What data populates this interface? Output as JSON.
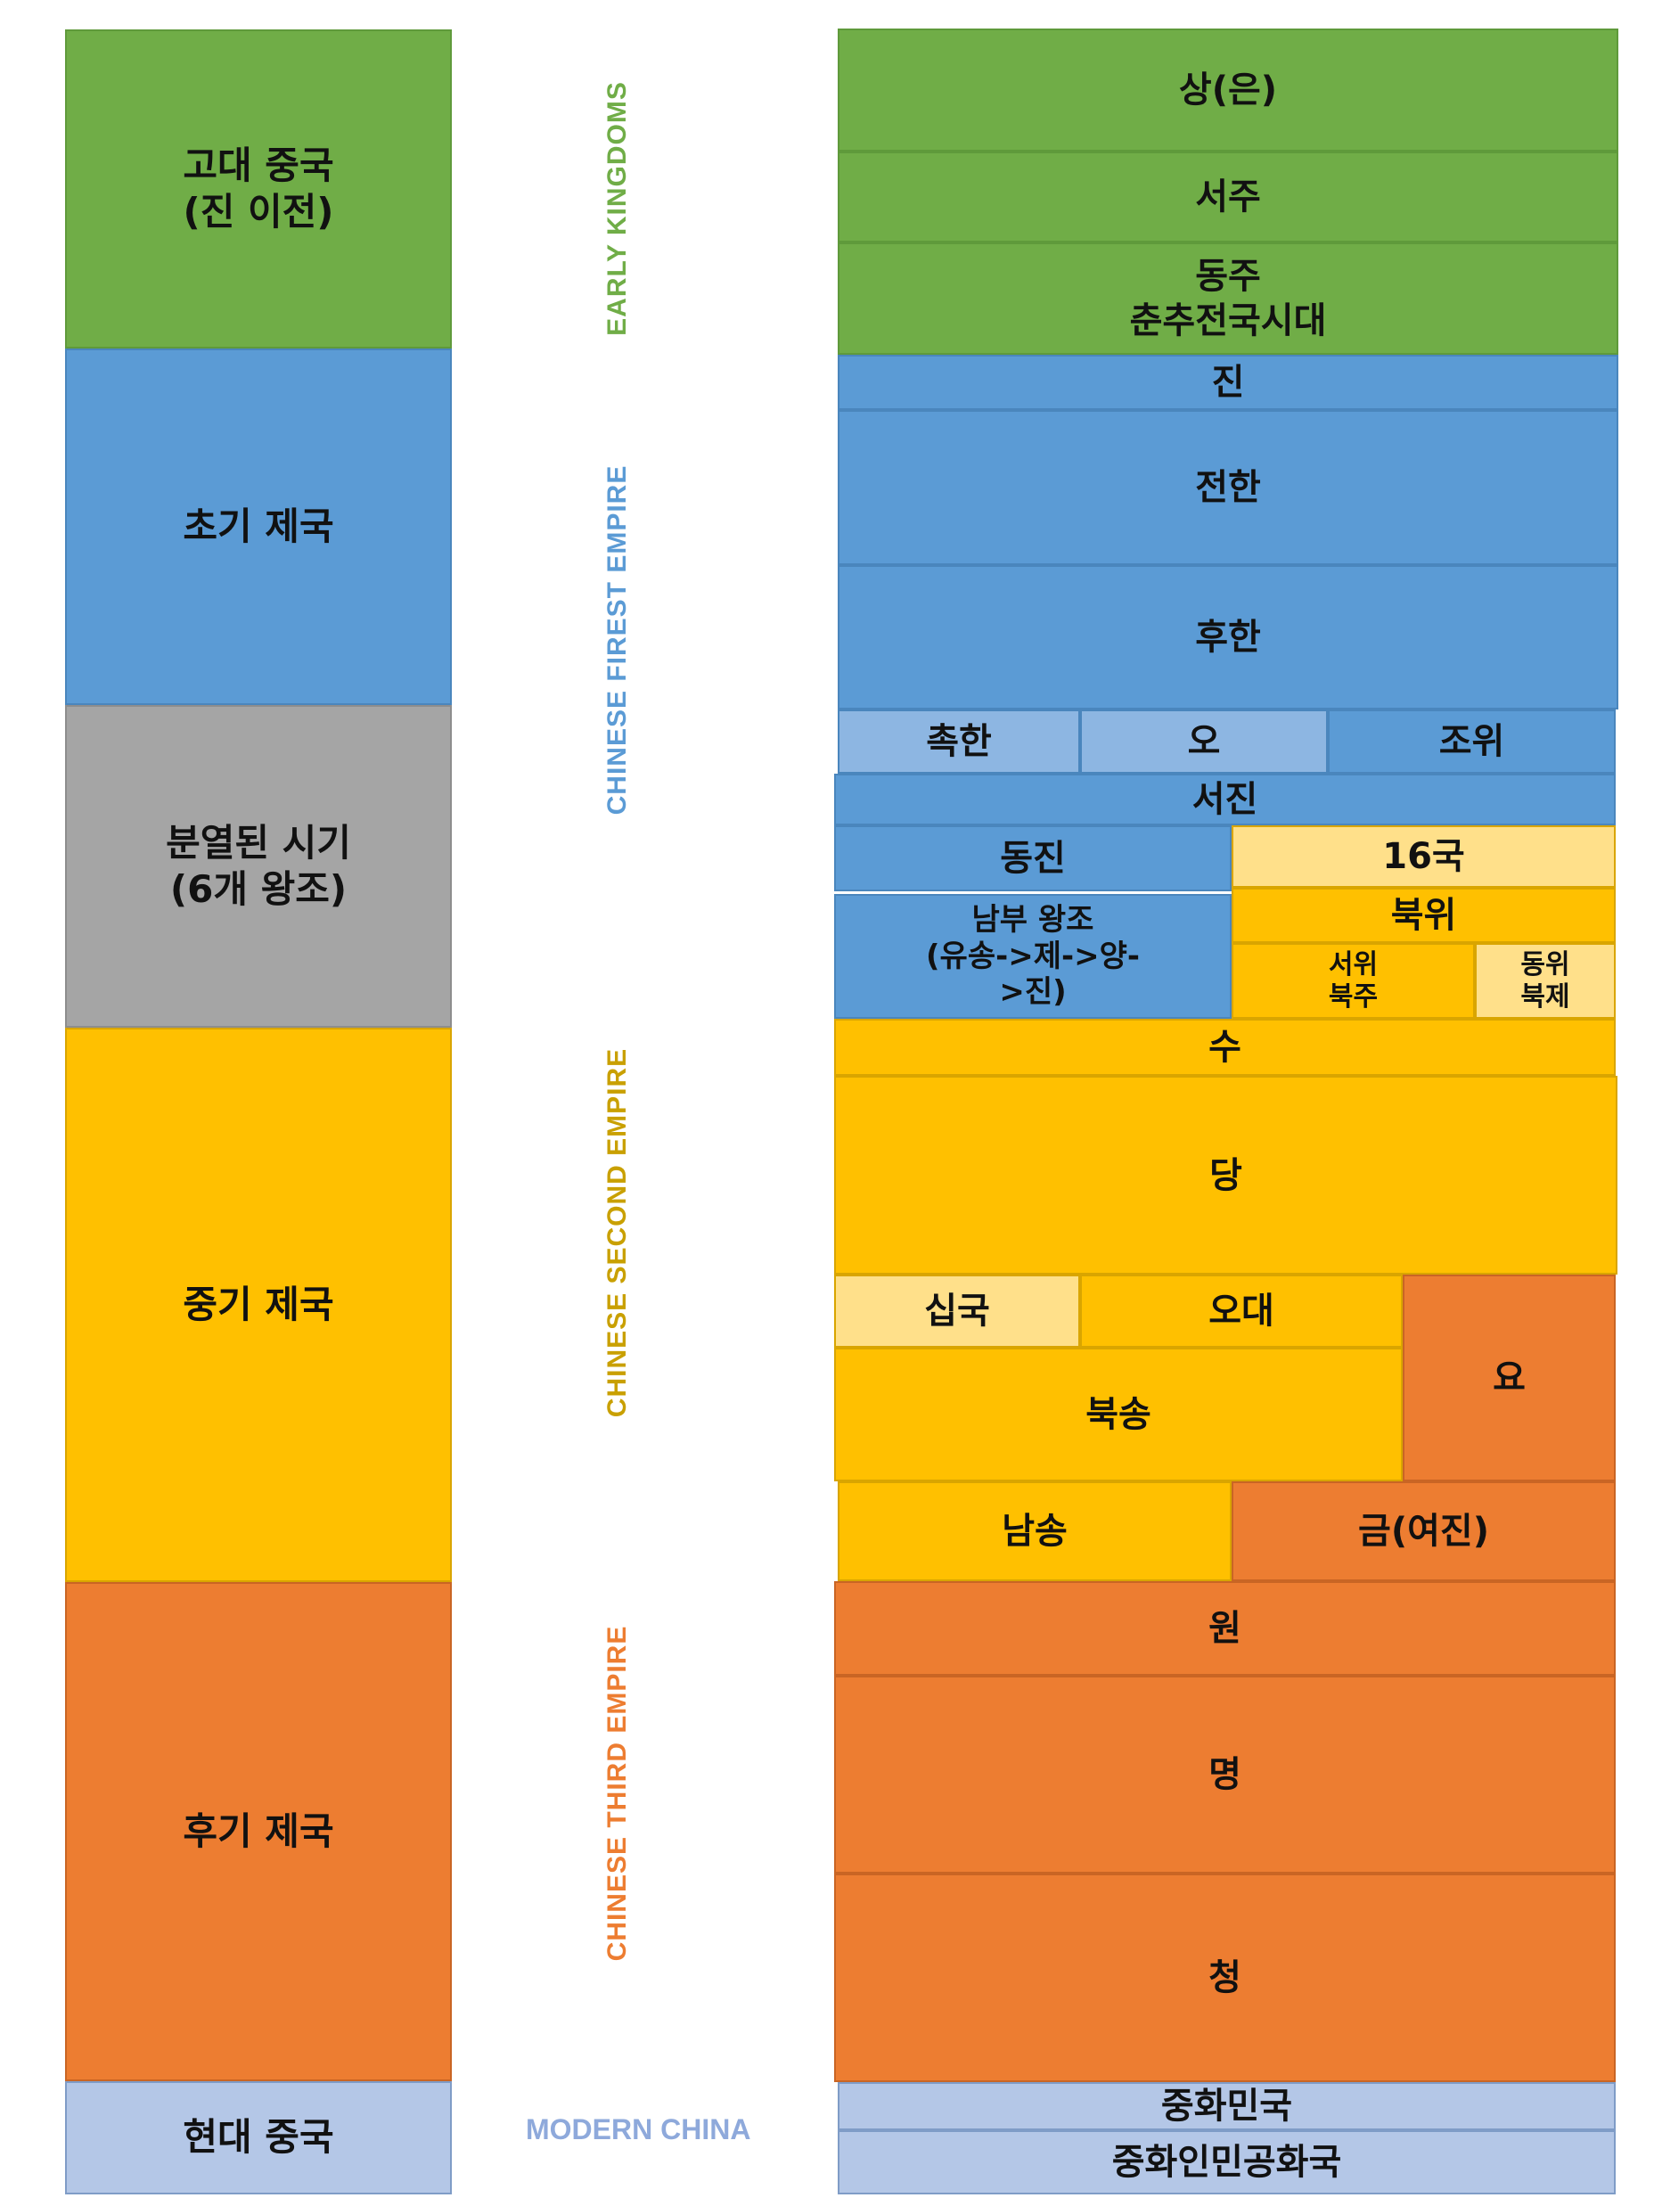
{
  "colors": {
    "early": "#70ad47",
    "first": "#5b9bd5",
    "division": "#a5a5a5",
    "second": "#ffc000",
    "third": "#ed7d31",
    "modern": "#b4c7e7"
  },
  "eras": {
    "ancient": "고대 중국\n(진 이전)",
    "early_empire": "초기 제국",
    "division": "분열된 시기\n(6개 왕조)",
    "middle_empire": "중기 제국",
    "late_empire": "후기 제국",
    "modern": "현대 중국"
  },
  "side_labels": {
    "early_kingdoms": "EARLY KINGDOMS",
    "first_empire": "CHINESE FIREST EMPIRE",
    "second_empire": "CHINESE SECOND EMPIRE",
    "third_empire": "CHINESE THIRD EMPIRE",
    "modern_china": "MODERN CHINA"
  },
  "dynasties": {
    "shang": "상(은)",
    "western_zhou": "서주",
    "eastern_zhou": "동주\n춘추전국시대",
    "qin": "진",
    "western_han": "전한",
    "eastern_han": "후한",
    "shu_han": "촉한",
    "wu": "오",
    "cao_wei": "조위",
    "western_jin": "서진",
    "eastern_jin": "동진",
    "sixteen_kingdoms": "16국",
    "southern_dynasties": "남부 왕조\n(유송->제->양-\n>진)",
    "northern_wei": "북위",
    "western_wei": "서위\n북주",
    "eastern_wei": "동위\n북제",
    "sui": "수",
    "tang": "당",
    "ten_kingdoms": "십국",
    "five_dynasties": "오대",
    "liao": "요",
    "northern_song": "북송",
    "southern_song": "남송",
    "jin_jurchen": "금(여진)",
    "yuan": "원",
    "ming": "명",
    "qing": "청",
    "roc": "중화민국",
    "prc": "중화인민공화국"
  }
}
